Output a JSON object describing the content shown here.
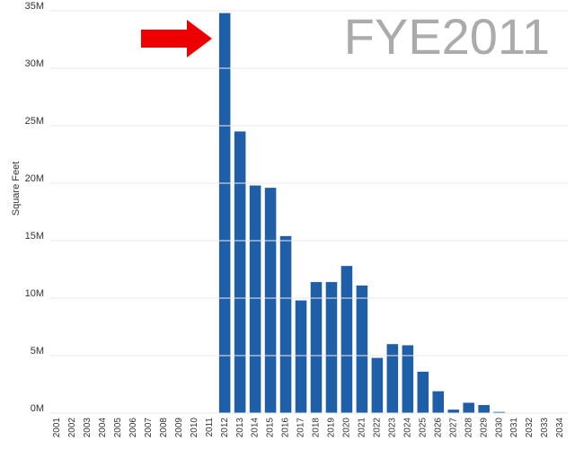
{
  "chart_data": {
    "type": "bar",
    "annotation": "FYE2011",
    "y_label": "Square Feet",
    "color": "#1f5fa8",
    "categories": [
      "2001",
      "2002",
      "2003",
      "2004",
      "2005",
      "2006",
      "2007",
      "2008",
      "2009",
      "2010",
      "2011",
      "2012",
      "2013",
      "2014",
      "2015",
      "2016",
      "2017",
      "2018",
      "2019",
      "2020",
      "2021",
      "2022",
      "2023",
      "2024",
      "2025",
      "2026",
      "2027",
      "2028",
      "2029",
      "2030",
      "2031",
      "2032",
      "2033",
      "2034"
    ],
    "values": [
      0,
      0,
      0,
      0,
      0,
      0,
      0,
      0,
      0,
      0,
      0,
      34800000,
      24500000,
      19800000,
      19600000,
      15400000,
      9800000,
      11400000,
      11400000,
      12800000,
      11100000,
      4800000,
      6000000,
      5900000,
      3600000,
      1900000,
      300000,
      900000,
      700000,
      100000,
      0,
      0,
      0,
      0
    ],
    "ylim": [
      0,
      35000000
    ],
    "yticks": [
      {
        "value": 0,
        "label": "0M"
      },
      {
        "value": 5000000,
        "label": "5M"
      },
      {
        "value": 10000000,
        "label": "10M"
      },
      {
        "value": 15000000,
        "label": "15M"
      },
      {
        "value": 20000000,
        "label": "20M"
      },
      {
        "value": 25000000,
        "label": "25M"
      },
      {
        "value": 30000000,
        "label": "30M"
      },
      {
        "value": 35000000,
        "label": "35M"
      }
    ],
    "grid": true
  }
}
